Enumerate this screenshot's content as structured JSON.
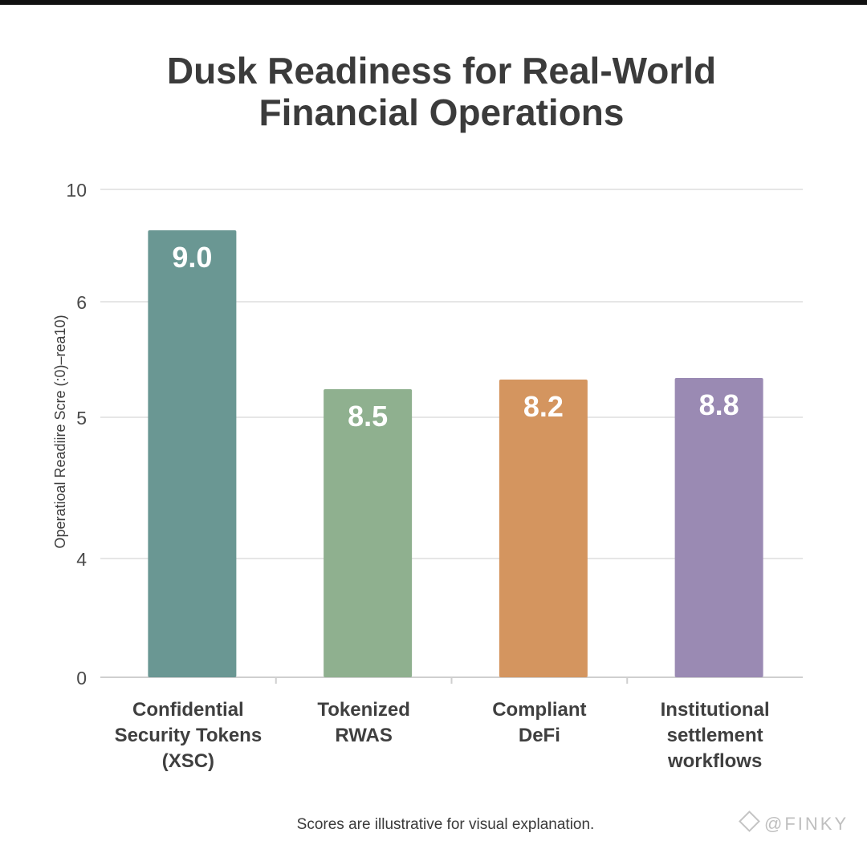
{
  "chart_data": {
    "type": "bar",
    "title": [
      "Dusk Readiness for Real-World",
      "Financial Operations"
    ],
    "ylabel": "Operatioal Readiire Scre (:0)–rea10)",
    "xlabel": "",
    "y_ticks": [
      {
        "label": "10",
        "value": 10
      },
      {
        "label": "6",
        "value": 6
      },
      {
        "label": "5",
        "value": 5
      },
      {
        "label": "4",
        "value": 4
      },
      {
        "label": "0",
        "value": 0
      }
    ],
    "ylim": [
      0,
      10
    ],
    "grid": true,
    "categories": [
      [
        "Confidential",
        "Security Tokens",
        "(XSC)"
      ],
      [
        "Tokenized",
        "RWAS"
      ],
      [
        "Compliant",
        "DeFi"
      ],
      [
        "Institutional",
        "settlement",
        "workflows"
      ]
    ],
    "values": [
      9.0,
      8.5,
      8.2,
      8.8
    ],
    "value_labels": [
      "9.0",
      "8.5",
      "8.2",
      "8.8"
    ],
    "bar_colors": [
      "#6a9793",
      "#8fb08f",
      "#d4955f",
      "#9a8ab3"
    ]
  },
  "footnote": "Scores are illustrative for visual explanation.",
  "watermark": {
    "text": "@FINKY",
    "icon": "binance-diamond-icon"
  },
  "colors": {
    "title": "#3b3b3b",
    "axis_text": "#4a4a4a",
    "grid": "#dedede"
  }
}
